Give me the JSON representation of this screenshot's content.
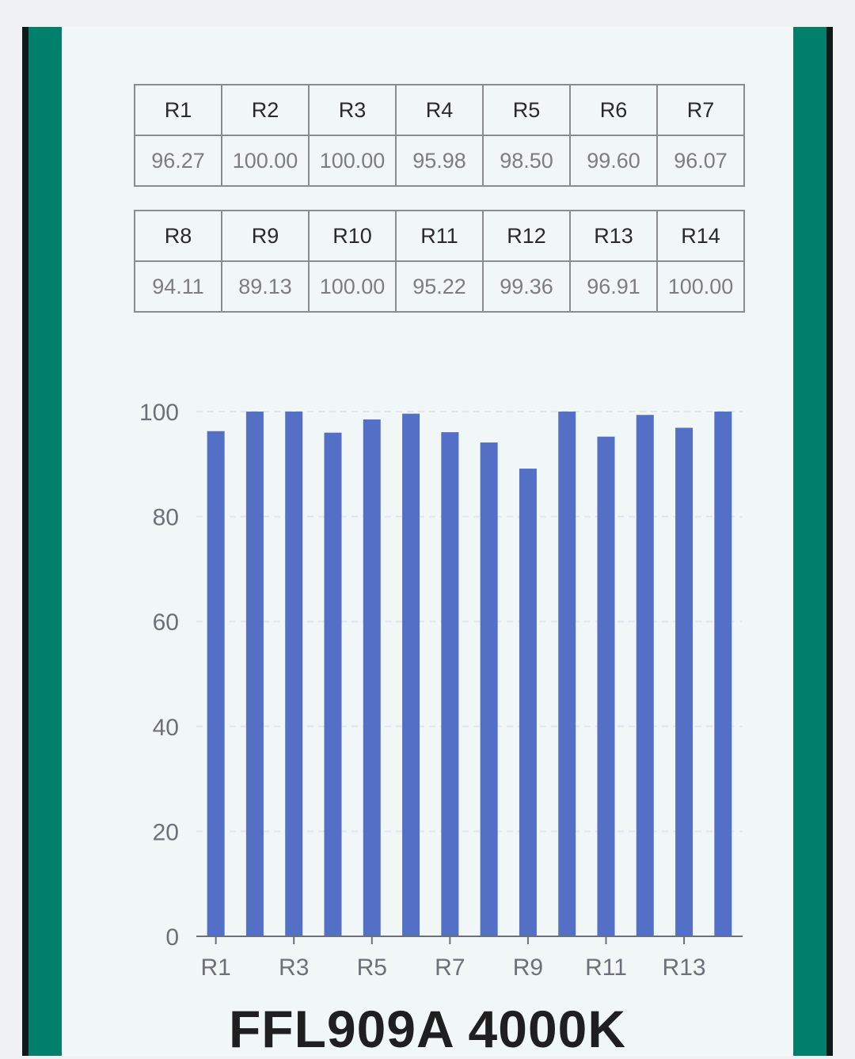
{
  "colors": {
    "frame": "#0e1a17",
    "band": "#00806c",
    "panel": "#f1f7f7",
    "bar": "#5470c6",
    "grid": "#e3e5ea",
    "axis": "#6e7079",
    "tick_text": "#6e7079"
  },
  "tables": [
    {
      "headers": [
        "R1",
        "R2",
        "R3",
        "R4",
        "R5",
        "R6",
        "R7"
      ],
      "values": [
        "96.27",
        "100.00",
        "100.00",
        "95.98",
        "98.50",
        "99.60",
        "96.07"
      ]
    },
    {
      "headers": [
        "R8",
        "R9",
        "R10",
        "R11",
        "R12",
        "R13",
        "R14"
      ],
      "values": [
        "94.11",
        "89.13",
        "100.00",
        "95.22",
        "99.36",
        "96.91",
        "100.00"
      ]
    }
  ],
  "chart_data": {
    "type": "bar",
    "categories": [
      "R1",
      "R2",
      "R3",
      "R4",
      "R5",
      "R6",
      "R7",
      "R8",
      "R9",
      "R10",
      "R11",
      "R12",
      "R13",
      "R14"
    ],
    "values": [
      96.27,
      100.0,
      100.0,
      95.98,
      98.5,
      99.6,
      96.07,
      94.11,
      89.13,
      100.0,
      95.22,
      99.36,
      96.91,
      100.0
    ],
    "x_tick_labels": [
      "R1",
      "R3",
      "R5",
      "R7",
      "R9",
      "R11",
      "R13"
    ],
    "y_ticks": [
      0,
      20,
      40,
      60,
      80,
      100
    ],
    "ylim": [
      0,
      100
    ],
    "grid": "horizontal dashed",
    "legend": "none",
    "title": "FFL909A 4000K",
    "xlabel": "",
    "ylabel": ""
  }
}
